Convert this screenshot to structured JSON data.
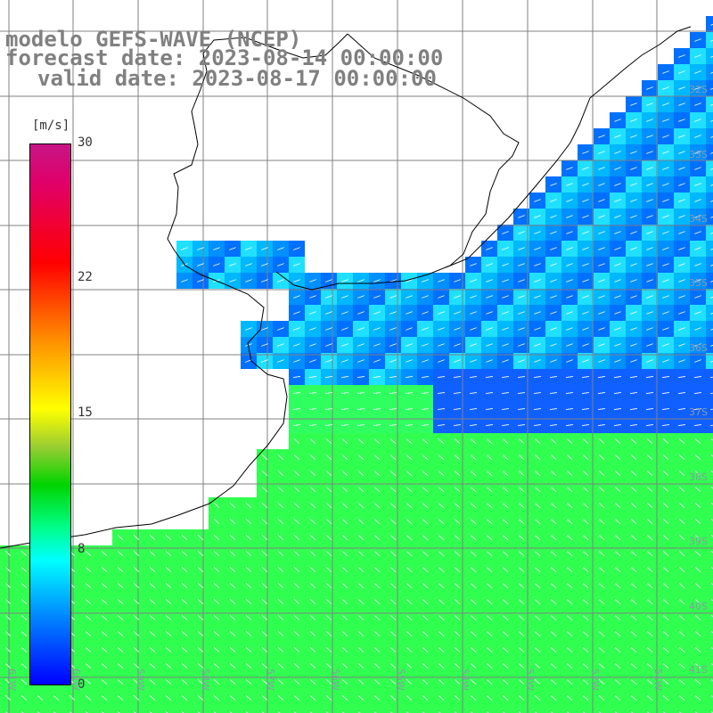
{
  "title": {
    "line1": "modelo GEFS-WAVE (NCEP)",
    "line2": "forecast date: 2023-08-14 00:00:00",
    "line3": "valid date: 2023-08-17 00:00:00"
  },
  "colorbar": {
    "units": "[m/s]",
    "ticks": [
      "30",
      "22",
      "15",
      "8",
      "0"
    ],
    "colors": [
      "#c71585",
      "#ff0000",
      "#ff8c00",
      "#ffff00",
      "#00d400",
      "#00ffff",
      "#0000ff"
    ]
  },
  "map": {
    "lat_labels": [
      "32S",
      "33S",
      "34S",
      "35S",
      "36S",
      "37S",
      "38S",
      "39S",
      "40S",
      "41S"
    ],
    "lon_labels": [
      "61W",
      "60W",
      "59W",
      "58W",
      "57W",
      "56W",
      "55W",
      "54W",
      "53W",
      "52W",
      "51W"
    ],
    "land_color": "#ffffff",
    "grid_color": "#808080",
    "arrow_color": "#ffffff"
  }
}
